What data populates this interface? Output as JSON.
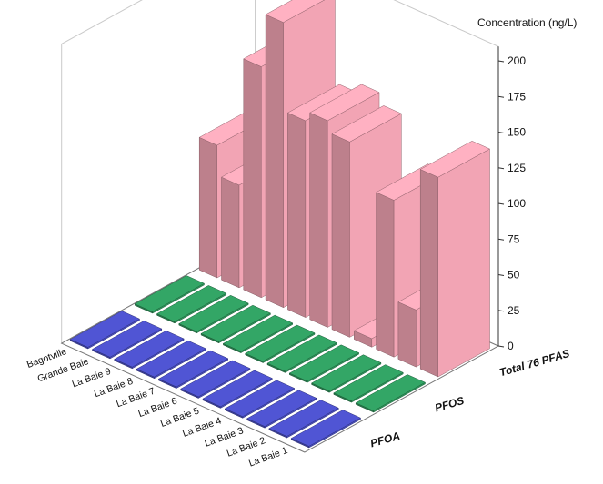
{
  "chart_data": {
    "type": "bar",
    "ylabel": "Concentration (ng/L)",
    "zlim": [
      0,
      200
    ],
    "z_ticks": [
      0,
      25,
      50,
      75,
      100,
      125,
      150,
      175,
      200
    ],
    "categories": [
      "La Baie 1",
      "La Baie 2",
      "La Baie 3",
      "La Baie 4",
      "La Baie 5",
      "La Baie 6",
      "La Baie 7",
      "La Baie 8",
      "La Baie 9",
      "Grande Baie",
      "Bagotville"
    ],
    "series": [
      {
        "name": "PFOA",
        "values": [
          1,
          1,
          1,
          1,
          1,
          1,
          1,
          1,
          1,
          1,
          1
        ]
      },
      {
        "name": "PFOS",
        "values": [
          1,
          1,
          1,
          1,
          1,
          1,
          1,
          1,
          1,
          1,
          1
        ]
      },
      {
        "name": "Total 76 PFAS",
        "values": [
          140,
          40,
          110,
          6,
          137,
          145,
          138,
          200,
          162,
          72,
          93
        ]
      }
    ],
    "colors": {
      "PFOA": "#4a4fc4",
      "PFOS": "#2f9a5e",
      "Total 76 PFAS": "#f2a4b4"
    }
  }
}
